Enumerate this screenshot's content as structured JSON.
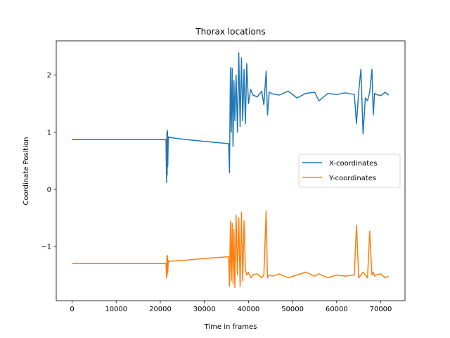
{
  "chart_data": {
    "type": "line",
    "title": "Thorax locations",
    "xlabel": "Time in frames",
    "ylabel": "Coordinate Position",
    "xlim": [
      -3600,
      75500
    ],
    "ylim": [
      -1.95,
      2.6
    ],
    "xticks": [
      0,
      10000,
      20000,
      30000,
      40000,
      50000,
      60000,
      70000
    ],
    "yticks": [
      -1,
      0,
      1,
      2
    ],
    "ytick_labels": [
      "−1",
      "0",
      "1",
      "2"
    ],
    "grid": false,
    "legend_position": "center-right",
    "series": [
      {
        "name": "X-coordinates",
        "color": "#1f77b4",
        "x": [
          0,
          5000,
          10000,
          15000,
          21000,
          21300,
          21400,
          21500,
          21550,
          21650,
          21700,
          21800,
          21900,
          22000,
          26000,
          30000,
          35500,
          35700,
          35900,
          36100,
          36300,
          36500,
          36700,
          36900,
          37200,
          37500,
          37800,
          38100,
          38400,
          38700,
          39000,
          39300,
          39600,
          40000,
          40500,
          41000,
          42000,
          43000,
          43500,
          44000,
          44300,
          44700,
          45500,
          47000,
          49000,
          51000,
          53000,
          55000,
          56000,
          58000,
          60000,
          62000,
          64000,
          64500,
          65000,
          65500,
          66000,
          66500,
          67000,
          67500,
          68000,
          68300,
          68600,
          69000,
          70000,
          71000,
          71800
        ],
        "y": [
          0.87,
          0.87,
          0.87,
          0.87,
          0.87,
          0.87,
          0.12,
          1.0,
          0.25,
          1.03,
          0.4,
          0.9,
          0.92,
          0.91,
          0.87,
          0.84,
          0.8,
          0.29,
          2.13,
          1.0,
          2.12,
          0.75,
          1.9,
          1.2,
          2.0,
          1.0,
          2.39,
          1.1,
          2.3,
          1.2,
          2.1,
          1.15,
          2.2,
          1.5,
          1.75,
          1.65,
          1.62,
          1.72,
          1.48,
          2.07,
          1.3,
          1.7,
          1.67,
          1.65,
          1.72,
          1.6,
          1.68,
          1.7,
          1.55,
          1.68,
          1.66,
          1.69,
          1.66,
          1.15,
          1.72,
          2.1,
          0.97,
          1.6,
          1.55,
          1.7,
          2.1,
          1.3,
          1.68,
          1.66,
          1.64,
          1.7,
          1.65
        ]
      },
      {
        "name": "Y-coordinates",
        "color": "#ff7f0e",
        "x": [
          0,
          5000,
          10000,
          15000,
          21000,
          21300,
          21400,
          21500,
          21550,
          21650,
          21700,
          21800,
          21900,
          22000,
          26000,
          30000,
          35500,
          35700,
          35900,
          36100,
          36300,
          36500,
          36700,
          36900,
          37200,
          37500,
          37800,
          38100,
          38400,
          38700,
          39000,
          39300,
          39600,
          40000,
          40500,
          41000,
          42000,
          43000,
          43500,
          44000,
          44300,
          44700,
          45500,
          47000,
          49000,
          51000,
          53000,
          55000,
          56000,
          58000,
          60000,
          62000,
          64000,
          64500,
          65000,
          65500,
          66000,
          66500,
          67000,
          67500,
          68000,
          68300,
          68600,
          69000,
          70000,
          71000,
          71800
        ],
        "y": [
          -1.3,
          -1.3,
          -1.3,
          -1.3,
          -1.3,
          -1.3,
          -1.55,
          -1.18,
          -1.5,
          -1.16,
          -1.45,
          -1.27,
          -1.25,
          -1.26,
          -1.24,
          -1.21,
          -1.18,
          -1.7,
          -0.56,
          -1.6,
          -0.6,
          -1.65,
          -0.7,
          -1.72,
          -0.45,
          -1.5,
          -0.5,
          -1.7,
          -0.4,
          -1.6,
          -0.55,
          -1.4,
          -1.5,
          -1.45,
          -1.55,
          -1.5,
          -1.48,
          -1.55,
          -1.5,
          -0.38,
          -1.55,
          -1.5,
          -1.52,
          -1.48,
          -1.55,
          -1.5,
          -1.45,
          -1.52,
          -1.48,
          -1.55,
          -1.5,
          -1.52,
          -1.5,
          -0.63,
          -1.55,
          -1.5,
          -1.45,
          -1.5,
          -1.55,
          -0.73,
          -1.5,
          -1.45,
          -1.52,
          -1.5,
          -1.48,
          -1.55,
          -1.52
        ]
      }
    ]
  }
}
